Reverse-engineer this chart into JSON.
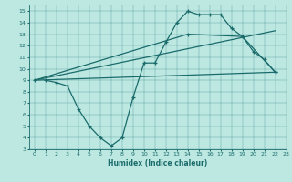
{
  "bg_color": "#bde8e2",
  "line_color": "#1a6b6b",
  "line1_x": [
    1,
    2,
    3,
    4,
    5,
    6,
    7,
    8,
    9,
    10,
    11,
    12,
    13,
    14,
    15,
    16,
    17,
    18,
    19,
    20,
    21,
    22
  ],
  "line1_y": [
    9.0,
    8.8,
    8.5,
    6.5,
    5.0,
    4.0,
    3.3,
    4.0,
    7.5,
    10.5,
    10.5,
    12.3,
    14.0,
    15.0,
    14.7,
    14.7,
    14.7,
    13.5,
    12.8,
    11.5,
    10.8,
    9.7
  ],
  "line2_x": [
    0,
    22
  ],
  "line2_y": [
    9.0,
    9.7
  ],
  "line3_x": [
    0,
    14,
    19,
    22
  ],
  "line3_y": [
    9.0,
    13.0,
    12.8,
    9.7
  ],
  "line4_x": [
    0,
    22
  ],
  "line4_y": [
    9.0,
    13.3
  ],
  "xlim": [
    -0.5,
    23
  ],
  "ylim": [
    3,
    15.5
  ],
  "xlabel": "Humidex (Indice chaleur)",
  "xticks": [
    0,
    1,
    2,
    3,
    4,
    5,
    6,
    7,
    8,
    9,
    10,
    11,
    12,
    13,
    14,
    15,
    16,
    17,
    18,
    19,
    20,
    21,
    22,
    23
  ],
  "yticks": [
    3,
    4,
    5,
    6,
    7,
    8,
    9,
    10,
    11,
    12,
    13,
    14,
    15
  ]
}
